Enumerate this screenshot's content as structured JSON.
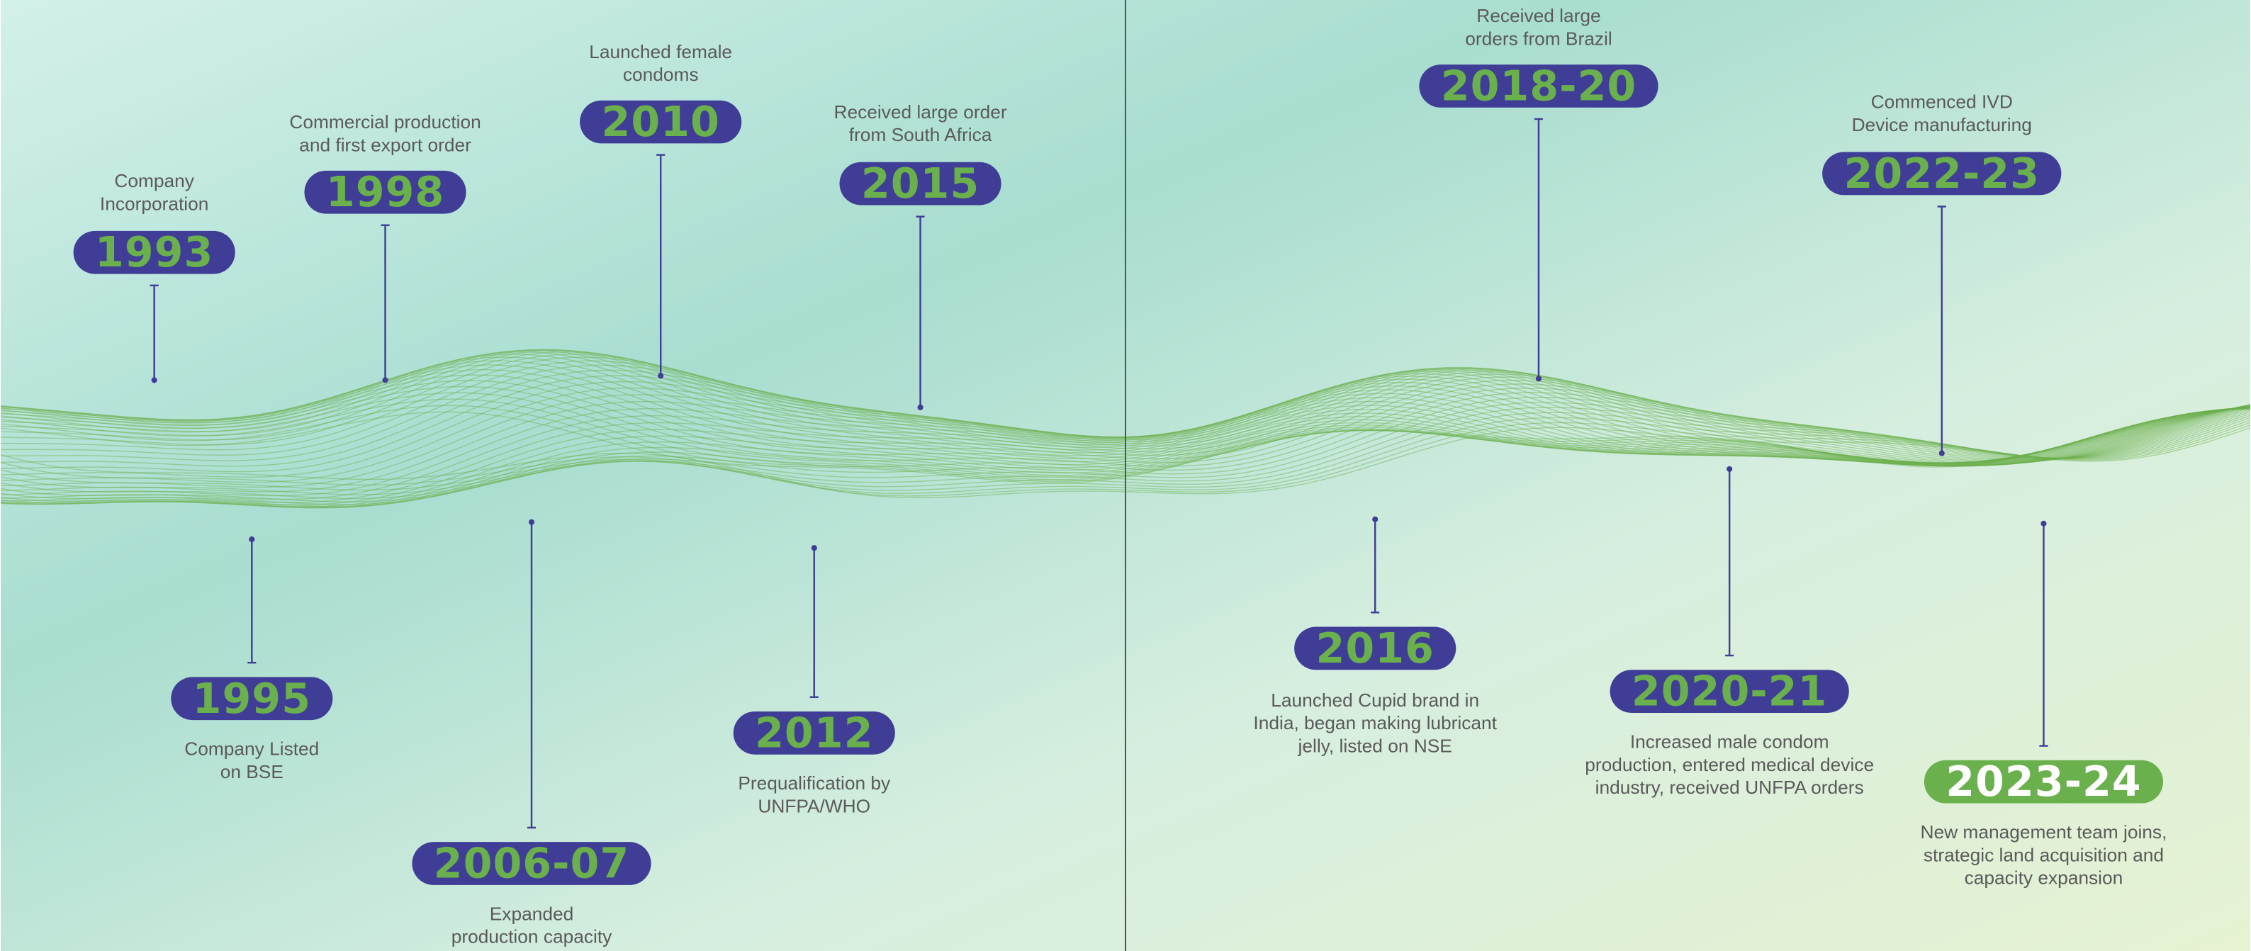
{
  "milestones": [
    {
      "year": "1993",
      "description": [
        "Company",
        "Incorporation"
      ]
    },
    {
      "year": "1995",
      "description": [
        "Company Listed",
        "on BSE"
      ]
    },
    {
      "year": "1998",
      "description": [
        "Commercial production",
        "and first export order"
      ]
    },
    {
      "year": "2006-07",
      "description": [
        "Expanded",
        "production capacity"
      ]
    },
    {
      "year": "2010",
      "description": [
        "Launched female",
        "condoms"
      ]
    },
    {
      "year": "2012",
      "description": [
        "Prequalification by",
        "UNFPA/WHO"
      ]
    },
    {
      "year": "2015",
      "description": [
        "Received large order",
        "from South Africa"
      ]
    },
    {
      "year": "2016",
      "description": [
        "Launched Cupid brand in",
        "India, began making lubricant",
        "jelly, listed on NSE"
      ]
    },
    {
      "year": "2018-20",
      "description": [
        "Received large",
        "orders from Brazil"
      ]
    },
    {
      "year": "2020-21",
      "description": [
        "Increased male condom",
        "production, entered medical device",
        "industry, received UNFPA orders"
      ]
    },
    {
      "year": "2022-23",
      "description": [
        "Commenced IVD",
        "Device manufacturing"
      ]
    },
    {
      "year": "2023-24",
      "description": [
        "New management team joins,",
        "strategic land acquisition and",
        "capacity expansion"
      ]
    }
  ]
}
